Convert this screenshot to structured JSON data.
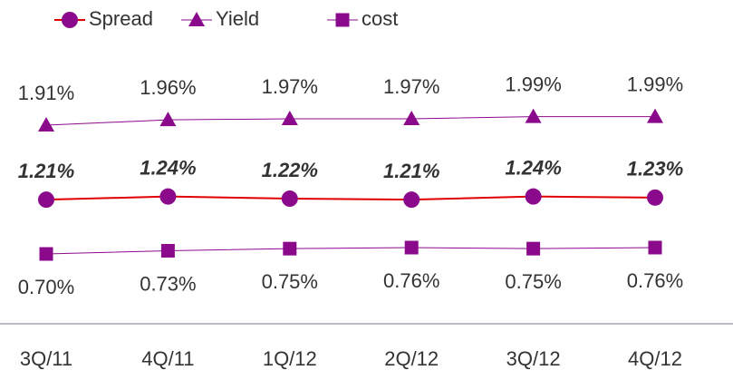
{
  "chart_data": {
    "type": "line",
    "categories": [
      "3Q/11",
      "4Q/11",
      "1Q/12",
      "2Q/12",
      "3Q/12",
      "4Q/12"
    ],
    "ylim": [
      0.5,
      2.2
    ],
    "series": [
      {
        "name": "Spread",
        "color": "#8b0a8b",
        "line_color": "#e00000",
        "marker": "circle",
        "values": [
          1.21,
          1.24,
          1.22,
          1.21,
          1.24,
          1.23
        ],
        "value_labels": [
          "1.21%",
          "1.24%",
          "1.22%",
          "1.21%",
          "1.24%",
          "1.23%"
        ]
      },
      {
        "name": "Yield",
        "color": "#8b0a8b",
        "marker": "triangle",
        "values": [
          1.91,
          1.96,
          1.97,
          1.97,
          1.99,
          1.99
        ],
        "value_labels": [
          "1.91%",
          "1.96%",
          "1.97%",
          "1.97%",
          "1.99%",
          "1.99%"
        ]
      },
      {
        "name": "cost",
        "color": "#8b0a8b",
        "marker": "square",
        "values": [
          0.7,
          0.73,
          0.75,
          0.76,
          0.75,
          0.76
        ],
        "value_labels": [
          "0.70%",
          "0.73%",
          "0.75%",
          "0.76%",
          "0.75%",
          "0.76%"
        ]
      }
    ]
  }
}
